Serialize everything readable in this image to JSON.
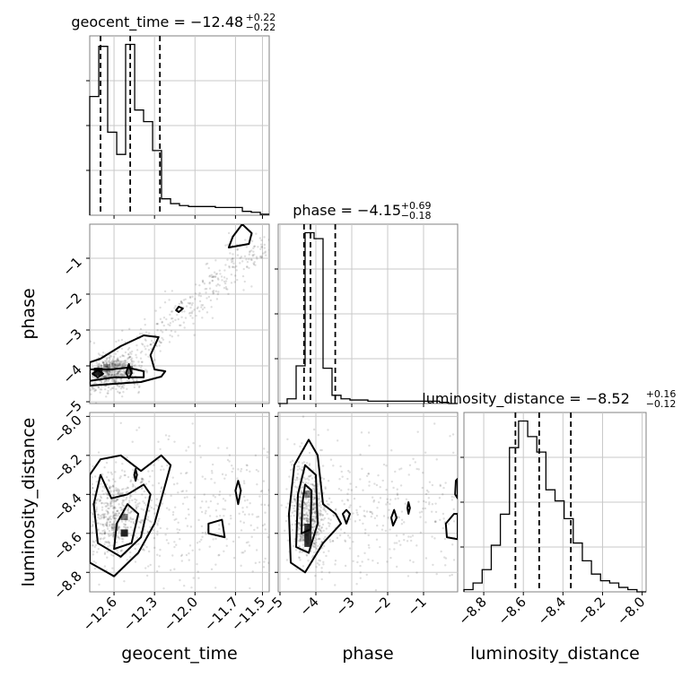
{
  "chart_data": {
    "type": "corner",
    "parameters": [
      "geocent_time",
      "phase",
      "luminosity_distance"
    ],
    "diagonal_titles": [
      {
        "name": "geocent_time",
        "median": "−12.48",
        "plus": "+0.22",
        "minus": "−0.22"
      },
      {
        "name": "phase",
        "median": "−4.15",
        "plus": "+0.69",
        "minus": "−0.18"
      },
      {
        "name": "luminosity_distance",
        "median": "−8.52",
        "plus": "+0.16",
        "minus": "−0.12"
      }
    ],
    "axis_labels": {
      "x": [
        "geocent_time",
        "phase",
        "luminosity_distance"
      ],
      "y": [
        "phase",
        "luminosity_distance"
      ]
    },
    "ranges": {
      "geocent_time": [
        -12.78,
        -11.45
      ],
      "phase": [
        -5.05,
        -0.05
      ],
      "luminosity_distance": [
        -8.9,
        -7.98
      ]
    },
    "x_ticks": {
      "geocent_time": {
        "values": [
          -12.6,
          -12.3,
          -12.0,
          -11.7,
          -11.5
        ],
        "labels": [
          "−12.6",
          "−12.3",
          "−12.0",
          "−11.7",
          "−11.5"
        ]
      },
      "phase": {
        "values": [
          -5,
          -4,
          -3,
          -2,
          -1
        ],
        "labels": [
          "−5",
          "−4",
          "−3",
          "−2",
          "−1"
        ]
      },
      "luminosity_distance": {
        "values": [
          -8.8,
          -8.6,
          -8.4,
          -8.2,
          -8.0
        ],
        "labels": [
          "−8.8",
          "−8.6",
          "−8.4",
          "−8.2",
          "−8.0"
        ]
      }
    },
    "y_ticks": {
      "phase": {
        "values": [
          -1,
          -2,
          -3,
          -4,
          -5
        ],
        "labels": [
          "−1",
          "−2",
          "−3",
          "−4",
          "−5"
        ]
      },
      "luminosity_distance": {
        "values": [
          -8.0,
          -8.2,
          -8.4,
          -8.6,
          -8.8
        ],
        "labels": [
          "−8.0",
          "−8.2",
          "−8.4",
          "−8.6",
          "−8.8"
        ]
      }
    },
    "histograms": {
      "geocent_time": {
        "edges": [
          -12.78,
          -12.713,
          -12.647,
          -12.58,
          -12.514,
          -12.447,
          -12.381,
          -12.314,
          -12.248,
          -12.181,
          -12.115,
          -12.048,
          -11.982,
          -11.915,
          -11.849,
          -11.782,
          -11.716,
          -11.649,
          -11.583,
          -11.516,
          -11.45
        ],
        "counts": [
          123,
          175,
          86,
          63,
          177,
          109,
          97,
          67,
          17,
          12,
          10,
          9,
          9,
          9,
          8,
          8,
          8,
          4,
          3,
          1
        ],
        "quantiles": [
          -12.7,
          -12.48,
          -12.26
        ]
      },
      "phase": {
        "edges": [
          -5.05,
          -4.8,
          -4.55,
          -4.3,
          -4.05,
          -3.8,
          -3.55,
          -3.3,
          -3.05,
          -2.8,
          -2.55,
          -2.3,
          -2.05,
          -1.8,
          -1.55,
          -1.3,
          -1.05,
          -0.8,
          -0.55,
          -0.3,
          -0.05
        ],
        "counts": [
          0,
          4,
          32,
          145,
          140,
          30,
          7,
          4,
          3,
          3,
          2,
          2,
          2,
          2,
          2,
          2,
          2,
          2,
          1,
          0
        ],
        "quantiles": [
          -4.33,
          -4.15,
          -3.46
        ]
      },
      "luminosity_distance": {
        "edges": [
          -8.9,
          -8.854,
          -8.808,
          -8.762,
          -8.716,
          -8.67,
          -8.624,
          -8.578,
          -8.532,
          -8.486,
          -8.44,
          -8.394,
          -8.348,
          -8.302,
          -8.256,
          -8.21,
          -8.164,
          -8.118,
          -8.072,
          -8.026,
          -7.98
        ],
        "counts": [
          1,
          4,
          10,
          21,
          35,
          65,
          77,
          70,
          63,
          46,
          41,
          33,
          22,
          14,
          8,
          5,
          4,
          2,
          1,
          0
        ],
        "quantiles": [
          -8.64,
          -8.52,
          -8.36
        ]
      }
    },
    "grid": true
  }
}
